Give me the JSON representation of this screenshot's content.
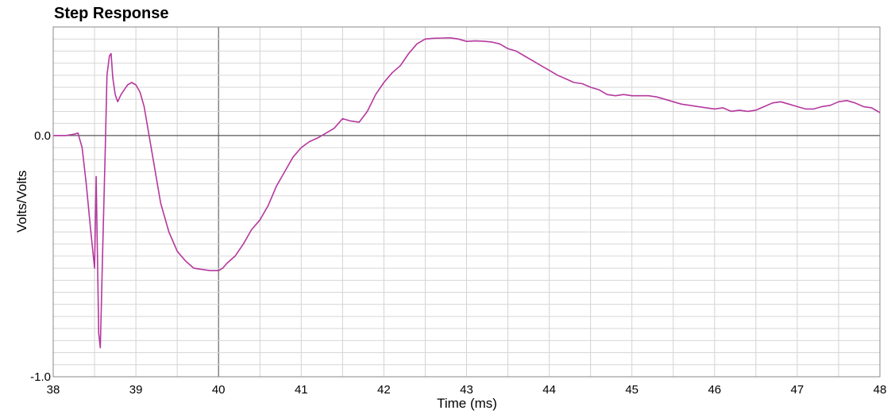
{
  "chart_data": {
    "type": "line",
    "title": "Step Response",
    "xlabel": "Time (ms)",
    "ylabel": "Volts/Volts",
    "xlim": [
      38,
      48
    ],
    "ylim": [
      -1.0,
      0.45
    ],
    "x_ticks": [
      38,
      39,
      40,
      41,
      42,
      43,
      44,
      45,
      46,
      47,
      48
    ],
    "x_tick_labels": [
      "38",
      "39",
      "40",
      "41",
      "42",
      "43",
      "44",
      "45",
      "46",
      "47",
      "48"
    ],
    "y_ticks": [
      0.0,
      -1.0
    ],
    "y_tick_labels": [
      "0.0",
      "-1.0"
    ],
    "grid": true,
    "line_color": "#b5389e",
    "series": [
      {
        "x": [
          38.0,
          38.15,
          38.25,
          38.3,
          38.35,
          38.4,
          38.45,
          38.5,
          38.52,
          38.55,
          38.57,
          38.6,
          38.63,
          38.65,
          38.68,
          38.7,
          38.72,
          38.75,
          38.78,
          38.82,
          38.86,
          38.9,
          38.95,
          39.0,
          39.05,
          39.1,
          39.2,
          39.3,
          39.4,
          39.5,
          39.6,
          39.7,
          39.8,
          39.9,
          40.0,
          40.05,
          40.1,
          40.2,
          40.3,
          40.4,
          40.5,
          40.6,
          40.7,
          40.8,
          40.9,
          41.0,
          41.1,
          41.2,
          41.3,
          41.4,
          41.5,
          41.6,
          41.7,
          41.8,
          41.9,
          42.0,
          42.1,
          42.2,
          42.3,
          42.4,
          42.5,
          42.6,
          42.7,
          42.8,
          42.9,
          43.0,
          43.1,
          43.2,
          43.3,
          43.4,
          43.5,
          43.6,
          43.7,
          43.8,
          43.9,
          44.0,
          44.1,
          44.2,
          44.3,
          44.4,
          44.5,
          44.6,
          44.7,
          44.8,
          44.9,
          45.0,
          45.1,
          45.2,
          45.3,
          45.4,
          45.5,
          45.6,
          45.7,
          45.8,
          45.9,
          46.0,
          46.1,
          46.2,
          46.3,
          46.4,
          46.5,
          46.6,
          46.7,
          46.8,
          46.9,
          47.0,
          47.1,
          47.2,
          47.3,
          47.4,
          47.5,
          47.6,
          47.7,
          47.8,
          47.9,
          48.0
        ],
        "values": [
          0.0,
          0.0,
          0.005,
          0.01,
          -0.05,
          -0.2,
          -0.38,
          -0.55,
          -0.17,
          -0.82,
          -0.88,
          -0.45,
          -0.05,
          0.25,
          0.33,
          0.34,
          0.24,
          0.17,
          0.14,
          0.17,
          0.19,
          0.21,
          0.22,
          0.21,
          0.18,
          0.12,
          -0.08,
          -0.28,
          -0.4,
          -0.48,
          -0.52,
          -0.55,
          -0.555,
          -0.56,
          -0.56,
          -0.55,
          -0.53,
          -0.5,
          -0.45,
          -0.39,
          -0.35,
          -0.29,
          -0.21,
          -0.15,
          -0.09,
          -0.05,
          -0.025,
          -0.01,
          0.01,
          0.03,
          0.07,
          0.06,
          0.055,
          0.1,
          0.17,
          0.22,
          0.26,
          0.29,
          0.34,
          0.38,
          0.4,
          0.403,
          0.404,
          0.405,
          0.4,
          0.39,
          0.392,
          0.391,
          0.388,
          0.38,
          0.36,
          0.35,
          0.33,
          0.31,
          0.29,
          0.27,
          0.25,
          0.235,
          0.22,
          0.215,
          0.2,
          0.19,
          0.17,
          0.165,
          0.17,
          0.165,
          0.165,
          0.165,
          0.16,
          0.15,
          0.14,
          0.13,
          0.125,
          0.12,
          0.115,
          0.11,
          0.115,
          0.1,
          0.105,
          0.1,
          0.105,
          0.12,
          0.135,
          0.14,
          0.13,
          0.12,
          0.11,
          0.11,
          0.12,
          0.125,
          0.14,
          0.145,
          0.135,
          0.12,
          0.115,
          0.095
        ]
      }
    ]
  }
}
